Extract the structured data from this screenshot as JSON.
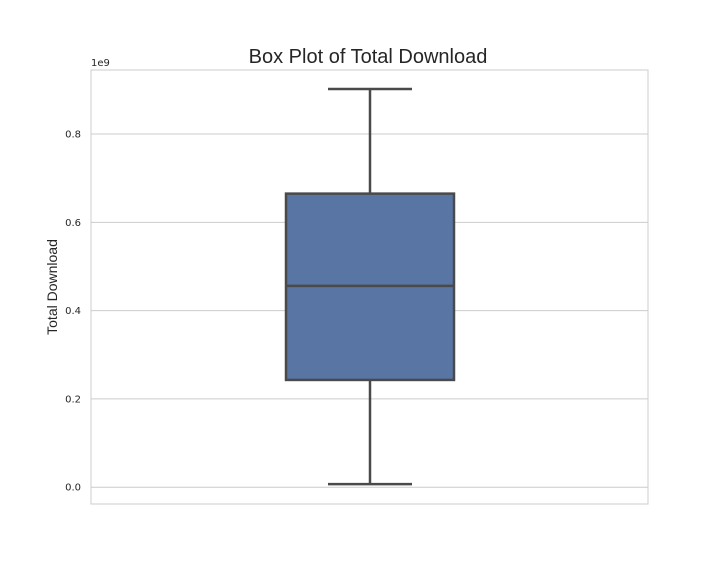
{
  "chart_data": {
    "type": "box",
    "title": "Box Plot of Total Download",
    "xlabel": "",
    "ylabel": "Total Download",
    "y_offset_label": "1e9",
    "ylim": [
      -0.038,
      0.945
    ],
    "yticks": [
      0.0,
      0.2,
      0.4,
      0.6,
      0.8
    ],
    "ytick_labels": [
      "0.0",
      "0.2",
      "0.4",
      "0.6",
      "0.8"
    ],
    "grid": true,
    "grid_axis": "y",
    "box": {
      "whisker_low": 0.007,
      "q1": 0.243,
      "median": 0.456,
      "q3": 0.665,
      "whisker_high": 0.902
    },
    "colors": {
      "box_fill": "#5875a4",
      "box_edge": "#4a4a4a",
      "grid": "#cccccc",
      "frame": "#cccccc"
    }
  }
}
